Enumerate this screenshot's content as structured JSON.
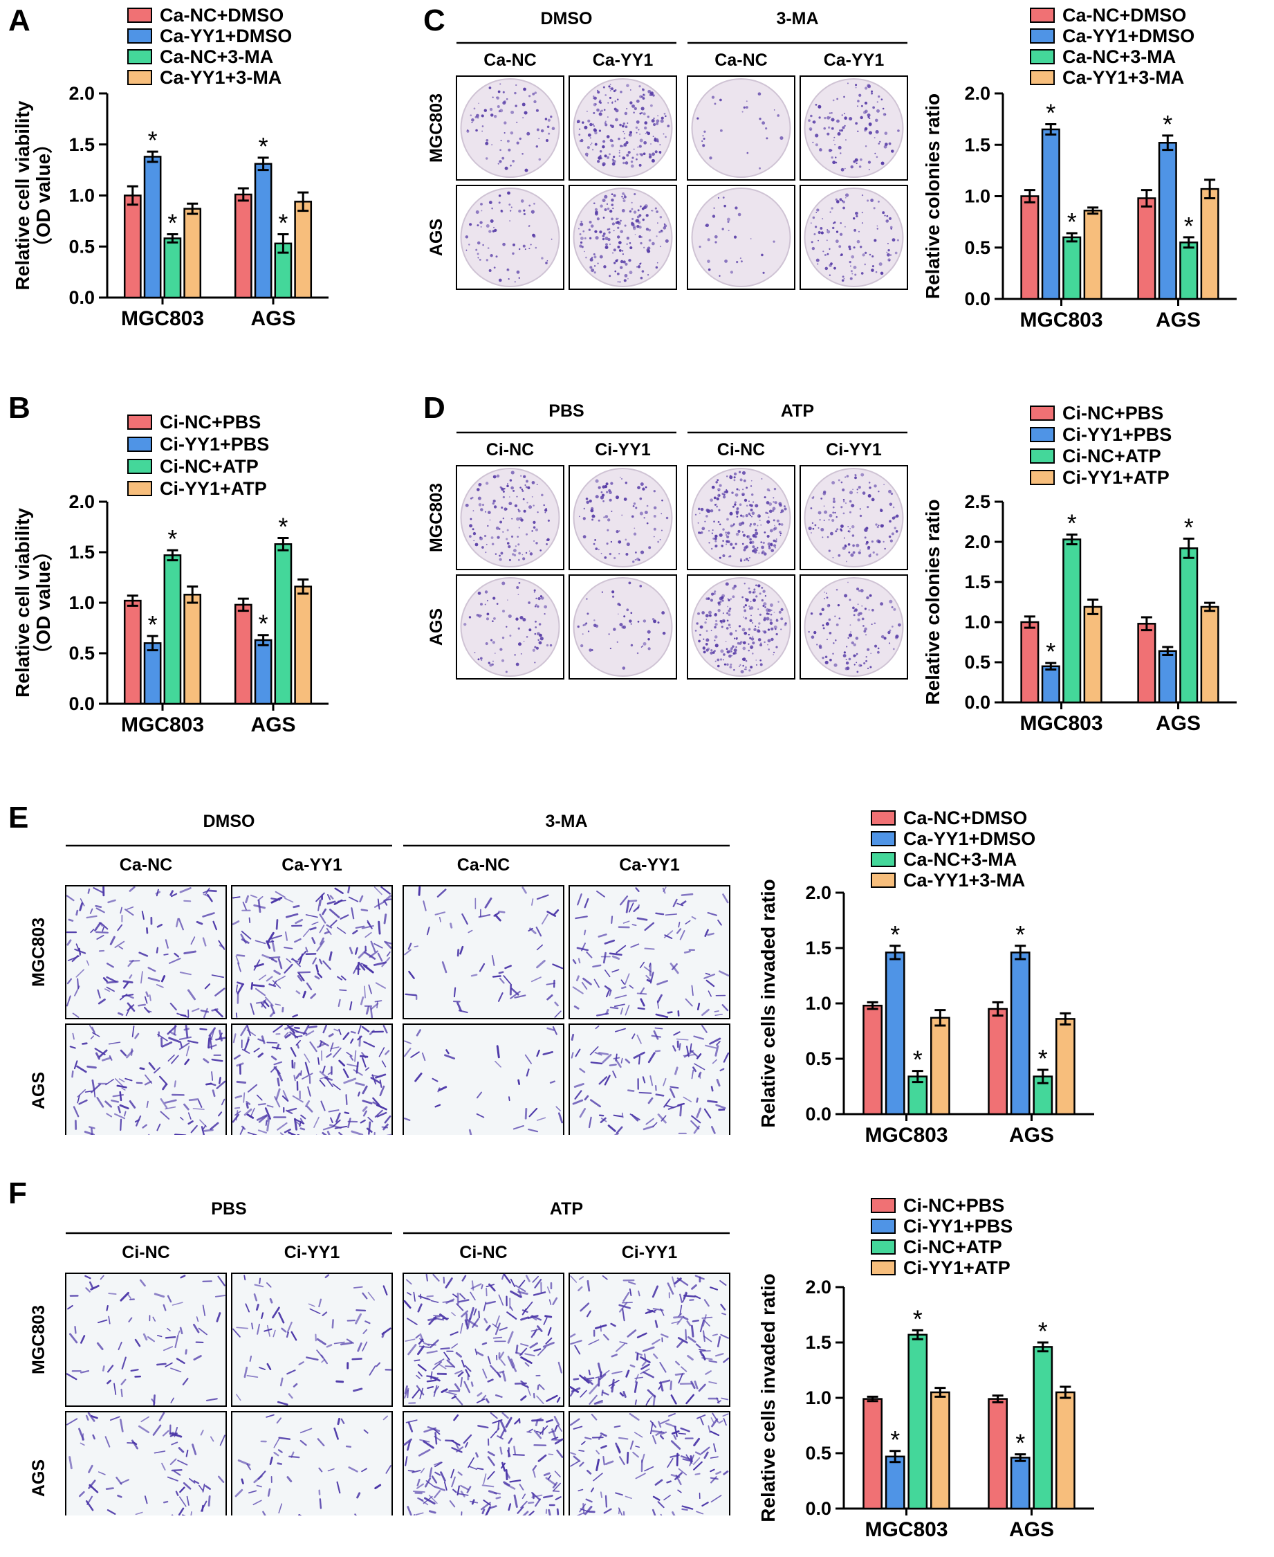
{
  "panels": {
    "A": {
      "letter": "A"
    },
    "B": {
      "letter": "B"
    },
    "C": {
      "letter": "C",
      "groups": [
        "DMSO",
        "3-MA"
      ],
      "columns": [
        "Ca-NC",
        "Ca-YY1",
        "Ca-NC",
        "Ca-YY1"
      ],
      "rows": [
        "MGC803",
        "AGS"
      ]
    },
    "D": {
      "letter": "D",
      "groups": [
        "PBS",
        "ATP"
      ],
      "columns": [
        "Ci-NC",
        "Ci-YY1",
        "Ci-NC",
        "Ci-YY1"
      ],
      "rows": [
        "MGC803",
        "AGS"
      ]
    },
    "E": {
      "letter": "E",
      "groups": [
        "DMSO",
        "3-MA"
      ],
      "columns": [
        "Ca-NC",
        "Ca-YY1",
        "Ca-NC",
        "Ca-YY1"
      ],
      "rows": [
        "MGC803",
        "AGS"
      ]
    },
    "F": {
      "letter": "F",
      "groups": [
        "PBS",
        "ATP"
      ],
      "columns": [
        "Ci-NC",
        "Ci-YY1",
        "Ci-NC",
        "Ci-YY1"
      ],
      "rows": [
        "MGC803",
        "AGS"
      ]
    }
  },
  "colors": {
    "series": [
      "#f07174",
      "#4f94e6",
      "#44d79a",
      "#f7be7c"
    ],
    "dish_bg": "#ece4ee",
    "dish_dot": "#5a3fa8",
    "field_bg": "#f3f6f8",
    "cell": "#4b36a8"
  },
  "chart_data": [
    {
      "id": "A",
      "type": "bar",
      "categories": [
        "MGC803",
        "AGS"
      ],
      "series": [
        {
          "name": "Ca-NC+DMSO",
          "values": [
            1.0,
            1.01
          ],
          "errors": [
            0.09,
            0.06
          ],
          "sig": [
            false,
            false
          ]
        },
        {
          "name": "Ca-YY1+DMSO",
          "values": [
            1.38,
            1.31
          ],
          "errors": [
            0.05,
            0.06
          ],
          "sig": [
            true,
            true
          ]
        },
        {
          "name": "Ca-NC+3-MA",
          "values": [
            0.58,
            0.53
          ],
          "errors": [
            0.04,
            0.09
          ],
          "sig": [
            true,
            true
          ]
        },
        {
          "name": "Ca-YY1+3-MA",
          "values": [
            0.87,
            0.94
          ],
          "errors": [
            0.05,
            0.09
          ],
          "sig": [
            false,
            false
          ]
        }
      ],
      "ylabel_lines": [
        "Relative cell viability",
        "（OD value）"
      ],
      "ylim": [
        0,
        2.0
      ],
      "yticks": [
        "0.0",
        "0.5",
        "1.0",
        "1.5",
        "2.0"
      ],
      "sig_mark": "*"
    },
    {
      "id": "B",
      "type": "bar",
      "categories": [
        "MGC803",
        "AGS"
      ],
      "series": [
        {
          "name": "Ci-NC+PBS",
          "values": [
            1.02,
            0.98
          ],
          "errors": [
            0.05,
            0.06
          ],
          "sig": [
            false,
            false
          ]
        },
        {
          "name": "Ci-YY1+PBS",
          "values": [
            0.6,
            0.63
          ],
          "errors": [
            0.07,
            0.05
          ],
          "sig": [
            true,
            true
          ]
        },
        {
          "name": "Ci-NC+ATP",
          "values": [
            1.47,
            1.58
          ],
          "errors": [
            0.05,
            0.06
          ],
          "sig": [
            true,
            true
          ]
        },
        {
          "name": "Ci-YY1+ATP",
          "values": [
            1.08,
            1.16
          ],
          "errors": [
            0.08,
            0.07
          ],
          "sig": [
            false,
            false
          ]
        }
      ],
      "ylabel_lines": [
        "Relative cell viability",
        "（OD value）"
      ],
      "ylim": [
        0,
        2.0
      ],
      "yticks": [
        "0.0",
        "0.5",
        "1.0",
        "1.5",
        "2.0"
      ],
      "sig_mark": "*"
    },
    {
      "id": "C",
      "type": "bar",
      "categories": [
        "MGC803",
        "AGS"
      ],
      "series": [
        {
          "name": "Ca-NC+DMSO",
          "values": [
            1.0,
            0.98
          ],
          "errors": [
            0.06,
            0.08
          ],
          "sig": [
            false,
            false
          ]
        },
        {
          "name": "Ca-YY1+DMSO",
          "values": [
            1.65,
            1.52
          ],
          "errors": [
            0.05,
            0.07
          ],
          "sig": [
            true,
            true
          ]
        },
        {
          "name": "Ca-NC+3-MA",
          "values": [
            0.6,
            0.55
          ],
          "errors": [
            0.04,
            0.05
          ],
          "sig": [
            true,
            true
          ]
        },
        {
          "name": "Ca-YY1+3-MA",
          "values": [
            0.86,
            1.07
          ],
          "errors": [
            0.03,
            0.09
          ],
          "sig": [
            false,
            false
          ]
        }
      ],
      "ylabel_lines": [
        "Relative colonies ratio"
      ],
      "ylim": [
        0,
        2.0
      ],
      "yticks": [
        "0.0",
        "0.5",
        "1.0",
        "1.5",
        "2.0"
      ],
      "sig_mark": "*"
    },
    {
      "id": "D",
      "type": "bar",
      "categories": [
        "MGC803",
        "AGS"
      ],
      "series": [
        {
          "name": "Ci-NC+PBS",
          "values": [
            1.0,
            0.98
          ],
          "errors": [
            0.07,
            0.08
          ],
          "sig": [
            false,
            false
          ]
        },
        {
          "name": "Ci-YY1+PBS",
          "values": [
            0.45,
            0.64
          ],
          "errors": [
            0.04,
            0.05
          ],
          "sig": [
            true,
            false
          ]
        },
        {
          "name": "Ci-NC+ATP",
          "values": [
            2.03,
            1.92
          ],
          "errors": [
            0.06,
            0.12
          ],
          "sig": [
            true,
            true
          ]
        },
        {
          "name": "Ci-YY1+ATP",
          "values": [
            1.19,
            1.19
          ],
          "errors": [
            0.09,
            0.05
          ],
          "sig": [
            false,
            false
          ]
        }
      ],
      "ylabel_lines": [
        "Relative colonies ratio"
      ],
      "ylim": [
        0,
        2.5
      ],
      "yticks": [
        "0.0",
        "0.5",
        "1.0",
        "1.5",
        "2.0",
        "2.5"
      ],
      "sig_mark": "*"
    },
    {
      "id": "E",
      "type": "bar",
      "categories": [
        "MGC803",
        "AGS"
      ],
      "series": [
        {
          "name": "Ca-NC+DMSO",
          "values": [
            0.98,
            0.95
          ],
          "errors": [
            0.03,
            0.06
          ],
          "sig": [
            false,
            false
          ]
        },
        {
          "name": "Ca-YY1+DMSO",
          "values": [
            1.46,
            1.46
          ],
          "errors": [
            0.06,
            0.06
          ],
          "sig": [
            true,
            true
          ]
        },
        {
          "name": "Ca-NC+3-MA",
          "values": [
            0.34,
            0.34
          ],
          "errors": [
            0.05,
            0.06
          ],
          "sig": [
            true,
            true
          ]
        },
        {
          "name": "Ca-YY1+3-MA",
          "values": [
            0.87,
            0.86
          ],
          "errors": [
            0.07,
            0.05
          ],
          "sig": [
            false,
            false
          ]
        }
      ],
      "ylabel_lines": [
        "Relative cells invaded ratio"
      ],
      "ylim": [
        0,
        2.0
      ],
      "yticks": [
        "0.0",
        "0.5",
        "1.0",
        "1.5",
        "2.0"
      ],
      "sig_mark": "*"
    },
    {
      "id": "F",
      "type": "bar",
      "categories": [
        "MGC803",
        "AGS"
      ],
      "series": [
        {
          "name": "Ci-NC+PBS",
          "values": [
            0.99,
            0.99
          ],
          "errors": [
            0.02,
            0.03
          ],
          "sig": [
            false,
            false
          ]
        },
        {
          "name": "Ci-YY1+PBS",
          "values": [
            0.47,
            0.46
          ],
          "errors": [
            0.05,
            0.03
          ],
          "sig": [
            true,
            true
          ]
        },
        {
          "name": "Ci-NC+ATP",
          "values": [
            1.57,
            1.46
          ],
          "errors": [
            0.04,
            0.04
          ],
          "sig": [
            true,
            true
          ]
        },
        {
          "name": "Ci-YY1+ATP",
          "values": [
            1.05,
            1.05
          ],
          "errors": [
            0.04,
            0.05
          ],
          "sig": [
            false,
            false
          ]
        }
      ],
      "ylabel_lines": [
        "Relative cells invaded ratio"
      ],
      "ylim": [
        0,
        2.0
      ],
      "yticks": [
        "0.0",
        "0.5",
        "1.0",
        "1.5",
        "2.0"
      ],
      "sig_mark": "*"
    }
  ]
}
